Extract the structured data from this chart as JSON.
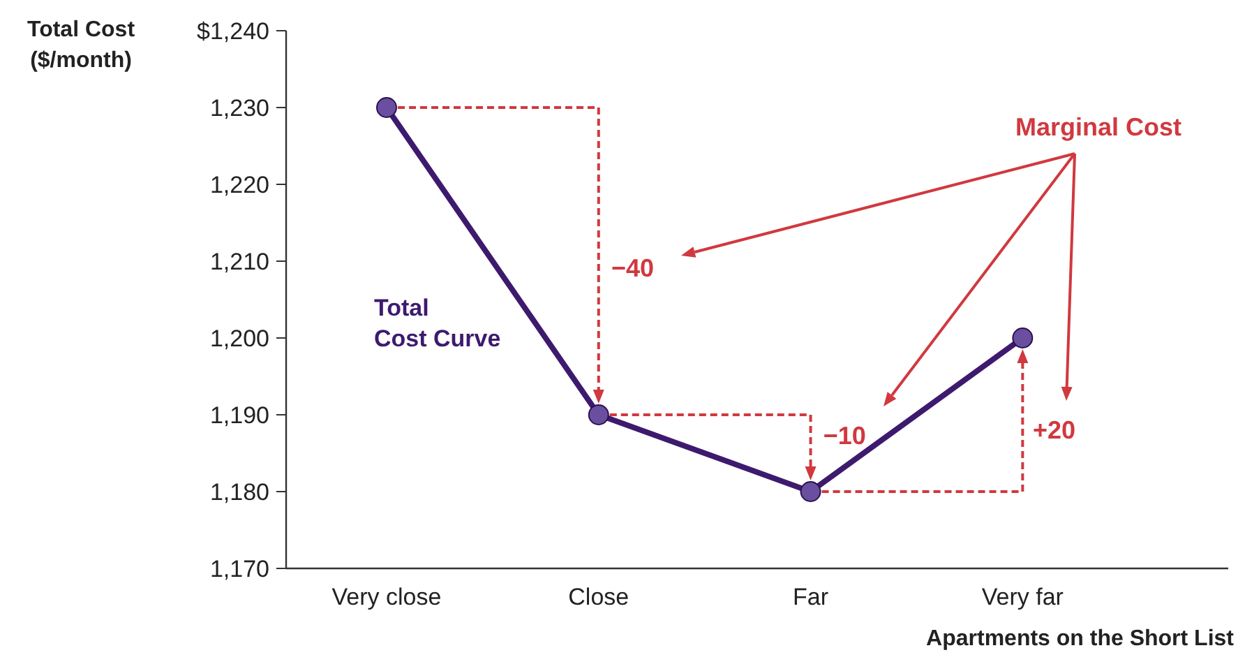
{
  "chart_data": {
    "type": "line",
    "ylabel": "Total Cost\n($/month)",
    "xlabel": "Apartments on the Short List",
    "categories": [
      "Very close",
      "Close",
      "Far",
      "Very far"
    ],
    "series": [
      {
        "name": "Total\nCost Curve",
        "color": "#3d1a6e",
        "values": [
          1230,
          1190,
          1180,
          1200
        ]
      }
    ],
    "ylim": [
      1170,
      1240
    ],
    "yticks": [
      {
        "value": 1170,
        "label": "1,170"
      },
      {
        "value": 1180,
        "label": "1,180"
      },
      {
        "value": 1190,
        "label": "1,190"
      },
      {
        "value": 1200,
        "label": "1,200"
      },
      {
        "value": 1210,
        "label": "1,210"
      },
      {
        "value": 1220,
        "label": "1,220"
      },
      {
        "value": 1230,
        "label": "1,230"
      },
      {
        "value": 1240,
        "label": "$1,240"
      }
    ],
    "marker": "circle",
    "line_style": "solid",
    "annotations": [
      "Marginal Cost",
      "−40",
      {
        "text": "−10",
        "x": "Close",
        "y": 1190
      },
      "+20"
    ]
  }
}
